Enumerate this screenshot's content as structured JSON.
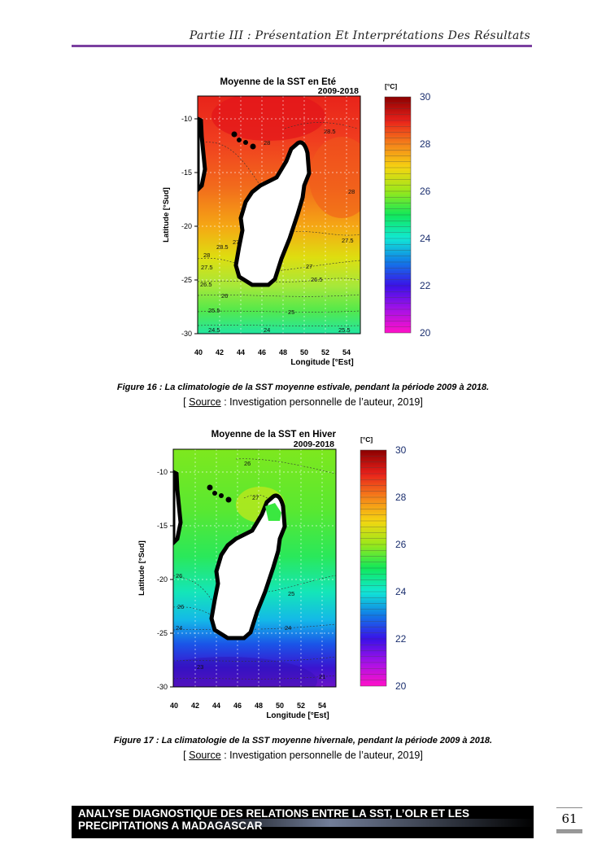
{
  "header": {
    "text": "Partie III : Présentation Et Interprétations Des Résultats"
  },
  "figure16": {
    "caption": "Figure 16 : La climatologie de la SST moyenne estivale, pendant la période 2009 à 2018.",
    "source_open": "[ ",
    "source_word": "Source",
    "source_rest": " : Investigation personnelle de l’auteur, 2019]",
    "chart_data": {
      "type": "heatmap",
      "title": "Moyenne de la SST en Eté",
      "subtitle": "2009-2018",
      "xlabel": "Longitude [°Est]",
      "ylabel": "Latitude [°Sud]",
      "xlim": [
        40,
        55
      ],
      "ylim": [
        -30,
        -8
      ],
      "x_ticks": [
        "40",
        "42",
        "44",
        "46",
        "48",
        "50",
        "52",
        "54"
      ],
      "y_ticks": [
        "-10",
        "-15",
        "-20",
        "-25",
        "-30"
      ],
      "colorbar": {
        "unit": "[°C]",
        "min": 20,
        "max": 30,
        "ticks": [
          "30",
          "28",
          "26",
          "24",
          "22",
          "20"
        ]
      },
      "contour_labels": [
        "28.5",
        "28",
        "28",
        "27.5",
        "28",
        "28.5",
        "27.5",
        "27",
        "26.5",
        "26",
        "25.5",
        "25",
        "24.5",
        "24",
        "26.5",
        "25.5",
        "27"
      ],
      "values_summary": {
        "north": 28.5,
        "mid": 27.5,
        "south": 24.5
      }
    }
  },
  "figure17": {
    "caption": "Figure 17 : La climatologie de la SST moyenne hivernale, pendant la période 2009 à 2018.",
    "source_open": "[ ",
    "source_word": "Source",
    "source_rest": " : Investigation personnelle de l’auteur, 2019]",
    "chart_data": {
      "type": "heatmap",
      "title": "Moyenne de la SST en Hiver",
      "subtitle": "2009-2018",
      "xlabel": "Longitude [°Est]",
      "ylabel": "Latitude [°Sud]",
      "xlim": [
        40,
        55
      ],
      "ylim": [
        -30,
        -8
      ],
      "x_ticks": [
        "40",
        "42",
        "44",
        "46",
        "48",
        "50",
        "52",
        "54"
      ],
      "y_ticks": [
        "-10",
        "-15",
        "-20",
        "-25",
        "-30"
      ],
      "colorbar": {
        "unit": "[°C]",
        "min": 20,
        "max": 30,
        "ticks": [
          "30",
          "28",
          "26",
          "24",
          "22",
          "20"
        ]
      },
      "contour_labels": [
        "26",
        "27",
        "26",
        "25",
        "26",
        "24",
        "24",
        "23",
        "21"
      ],
      "values_summary": {
        "north": 26.5,
        "mid": 25,
        "south": 21
      }
    }
  },
  "footer": {
    "line1": "ANALYSE DIAGNOSTIQUE DES RELATIONS ENTRE LA SST, L’OLR ET LES",
    "line2": "PRECIPITATIONS A MADAGASCAR",
    "page_number": "61"
  }
}
